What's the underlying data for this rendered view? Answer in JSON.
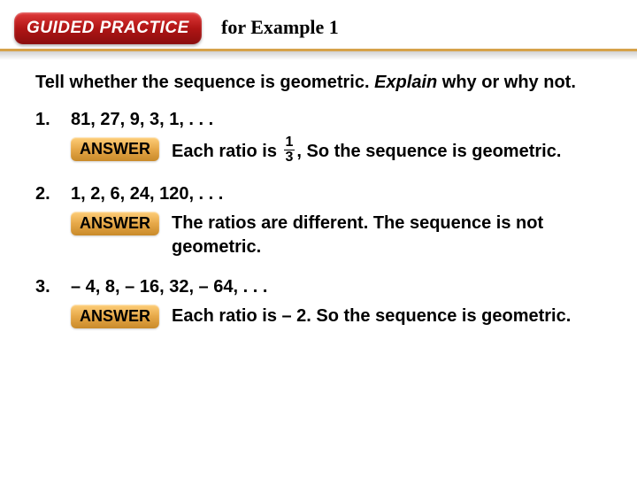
{
  "header": {
    "badge": "GUIDED PRACTICE",
    "title": "for Example 1"
  },
  "rule_color": "#d6a24a",
  "badge_gradient": [
    "#e03a3a",
    "#8a0e0e"
  ],
  "answer_badge_gradient": [
    "#ffcf7a",
    "#c98a2a"
  ],
  "prompt": {
    "pre": "Tell whether the sequence is geometric. ",
    "italic": "Explain",
    "post": " why or why not."
  },
  "answer_label": "ANSWER",
  "problems": [
    {
      "num": "1.",
      "sequence": "81, 27, 9, 3, 1, . . .",
      "answer_pre": "Each ratio is",
      "fraction": {
        "num": "1",
        "den": "3"
      },
      "answer_post": ", So the sequence is geometric."
    },
    {
      "num": "2.",
      "sequence": "1, 2, 6, 24, 120, . . .",
      "answer_text": "The ratios are different. The sequence is not geometric."
    },
    {
      "num": "3.",
      "sequence": "– 4, 8, – 16, 32, – 64, . . .",
      "answer_text": "Each ratio is – 2. So the sequence is geometric."
    }
  ]
}
